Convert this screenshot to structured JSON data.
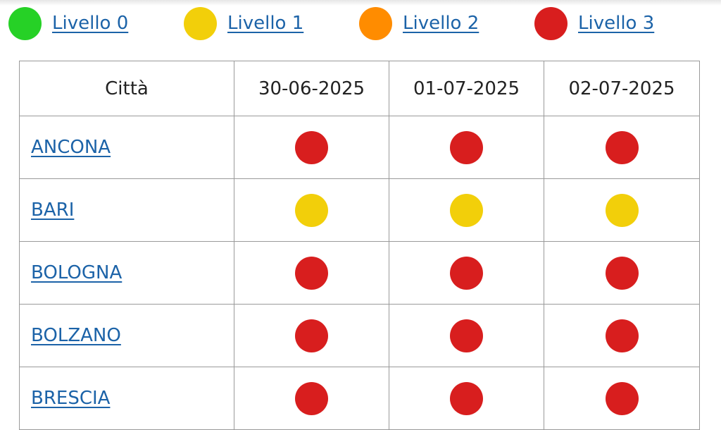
{
  "colors": {
    "level_0": "#26d126",
    "level_1": "#f2cf0a",
    "level_2": "#ff8c00",
    "level_3": "#d81e1e",
    "link": "#1c63a8"
  },
  "legend": [
    {
      "label": "Livello 0",
      "level": 0,
      "icon": "green-circle-icon"
    },
    {
      "label": "Livello 1",
      "level": 1,
      "icon": "yellow-circle-icon"
    },
    {
      "label": "Livello 2",
      "level": 2,
      "icon": "orange-circle-icon"
    },
    {
      "label": "Livello 3",
      "level": 3,
      "icon": "red-circle-icon"
    }
  ],
  "table": {
    "headers": [
      "Città",
      "30-06-2025",
      "01-07-2025",
      "02-07-2025"
    ],
    "rows": [
      {
        "city": "ANCONA",
        "levels": [
          3,
          3,
          3
        ]
      },
      {
        "city": "BARI",
        "levels": [
          1,
          1,
          1
        ]
      },
      {
        "city": "BOLOGNA",
        "levels": [
          3,
          3,
          3
        ]
      },
      {
        "city": "BOLZANO",
        "levels": [
          3,
          3,
          3
        ]
      },
      {
        "city": "BRESCIA",
        "levels": [
          3,
          3,
          3
        ]
      }
    ]
  }
}
